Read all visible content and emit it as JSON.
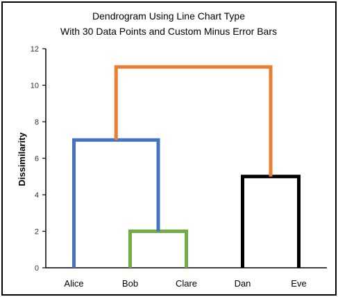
{
  "chart_data": {
    "type": "line",
    "title": [
      "Dendrogram Using Line Chart Type",
      "With 30 Data Points and Custom Minus Error Bars"
    ],
    "ylabel": "Dissimilarity",
    "xlabel": "",
    "categories": [
      "Alice",
      "Bob",
      "Clare",
      "Dan",
      "Eve"
    ],
    "ylim": [
      0,
      12
    ],
    "yticks": [
      0,
      2,
      4,
      6,
      8,
      10,
      12
    ],
    "grid": false,
    "legend": "none",
    "colors": {
      "blue": "#4472C4",
      "green": "#70AD47",
      "black": "#000000",
      "orange": "#ED7D31",
      "frame": "#000000",
      "axis": "#000000"
    },
    "links": [
      {
        "color": "green",
        "height": 2,
        "left": {
          "x": 1,
          "y": 0
        },
        "right": {
          "x": 2,
          "y": 0
        }
      },
      {
        "color": "blue",
        "height": 7,
        "left": {
          "x": 0,
          "y": 0
        },
        "right": {
          "x": 1.5,
          "y": 2
        }
      },
      {
        "color": "black",
        "height": 5,
        "left": {
          "x": 3,
          "y": 0
        },
        "right": {
          "x": 4,
          "y": 0
        }
      },
      {
        "color": "orange",
        "height": 11,
        "left": {
          "x": 0.75,
          "y": 7
        },
        "right": {
          "x": 3.5,
          "y": 5
        }
      }
    ]
  }
}
